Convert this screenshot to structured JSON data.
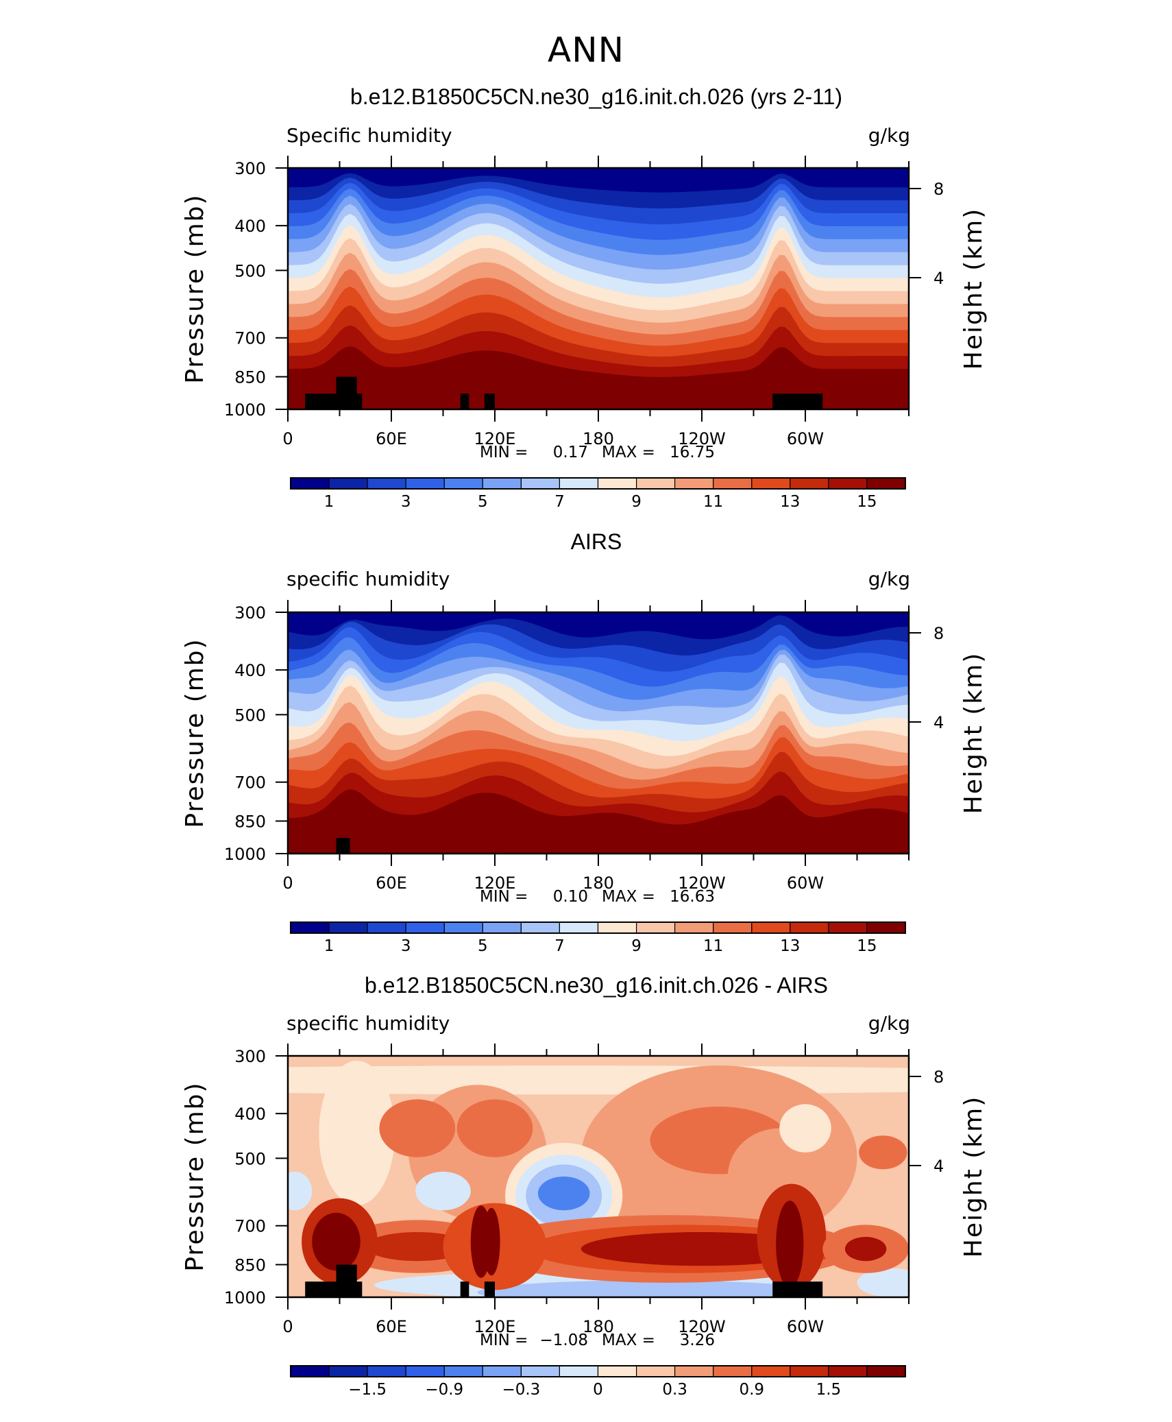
{
  "page_title": "ANN",
  "chart_data": [
    {
      "type": "heatmap",
      "title": "b.e12.B1850C5CN.ne30_g16.init.ch.026 (yrs 2-11)",
      "left_label": "Specific humidity",
      "right_label": "g/kg",
      "ylabel": "Pressure (mb)",
      "ylabel_right": "Height (km)",
      "x_ticks": [
        "0",
        "60E",
        "120E",
        "180",
        "120W",
        "60W"
      ],
      "y_ticks": [
        "300",
        "400",
        "500",
        "700",
        "850",
        "1000"
      ],
      "y_right_ticks": [
        "8",
        "4"
      ],
      "min_label": "MIN =",
      "min_value": "0.17",
      "max_label": "MAX =",
      "max_value": "16.75",
      "colorbar_labels": [
        "1",
        "3",
        "5",
        "7",
        "9",
        "11",
        "13",
        "15"
      ],
      "zlim": [
        0.17,
        16.75
      ]
    },
    {
      "type": "heatmap",
      "title": "AIRS",
      "left_label": "specific humidity",
      "right_label": "g/kg",
      "ylabel": "Pressure (mb)",
      "ylabel_right": "Height (km)",
      "x_ticks": [
        "0",
        "60E",
        "120E",
        "180",
        "120W",
        "60W"
      ],
      "y_ticks": [
        "300",
        "400",
        "500",
        "700",
        "850",
        "1000"
      ],
      "y_right_ticks": [
        "8",
        "4"
      ],
      "min_label": "MIN =",
      "min_value": "0.10",
      "max_label": "MAX =",
      "max_value": "16.63",
      "colorbar_labels": [
        "1",
        "3",
        "5",
        "7",
        "9",
        "11",
        "13",
        "15"
      ],
      "zlim": [
        0.1,
        16.63
      ]
    },
    {
      "type": "heatmap",
      "title": "b.e12.B1850C5CN.ne30_g16.init.ch.026 - AIRS",
      "left_label": "specific humidity",
      "right_label": "g/kg",
      "ylabel": "Pressure (mb)",
      "ylabel_right": "Height (km)",
      "x_ticks": [
        "0",
        "60E",
        "120E",
        "180",
        "120W",
        "60W"
      ],
      "y_ticks": [
        "300",
        "400",
        "500",
        "700",
        "850",
        "1000"
      ],
      "y_right_ticks": [
        "8",
        "4"
      ],
      "min_label": "MIN =",
      "min_value": "−1.08",
      "max_label": "MAX =",
      "max_value": "3.26",
      "colorbar_labels": [
        "−1.5",
        "−0.9",
        "−0.3",
        "0",
        "0.3",
        "0.9",
        "1.5"
      ],
      "zlim": [
        -1.08,
        3.26
      ]
    }
  ],
  "colors": [
    "#00008b",
    "#0c24a6",
    "#1f48d0",
    "#2f62e8",
    "#4c82f0",
    "#7aa3f5",
    "#a8c4f8",
    "#d7e8fb",
    "#fde8d3",
    "#f9c7aa",
    "#f29d78",
    "#ea6e45",
    "#e04a1c",
    "#c42a0c",
    "#a50f05",
    "#7e0000"
  ]
}
